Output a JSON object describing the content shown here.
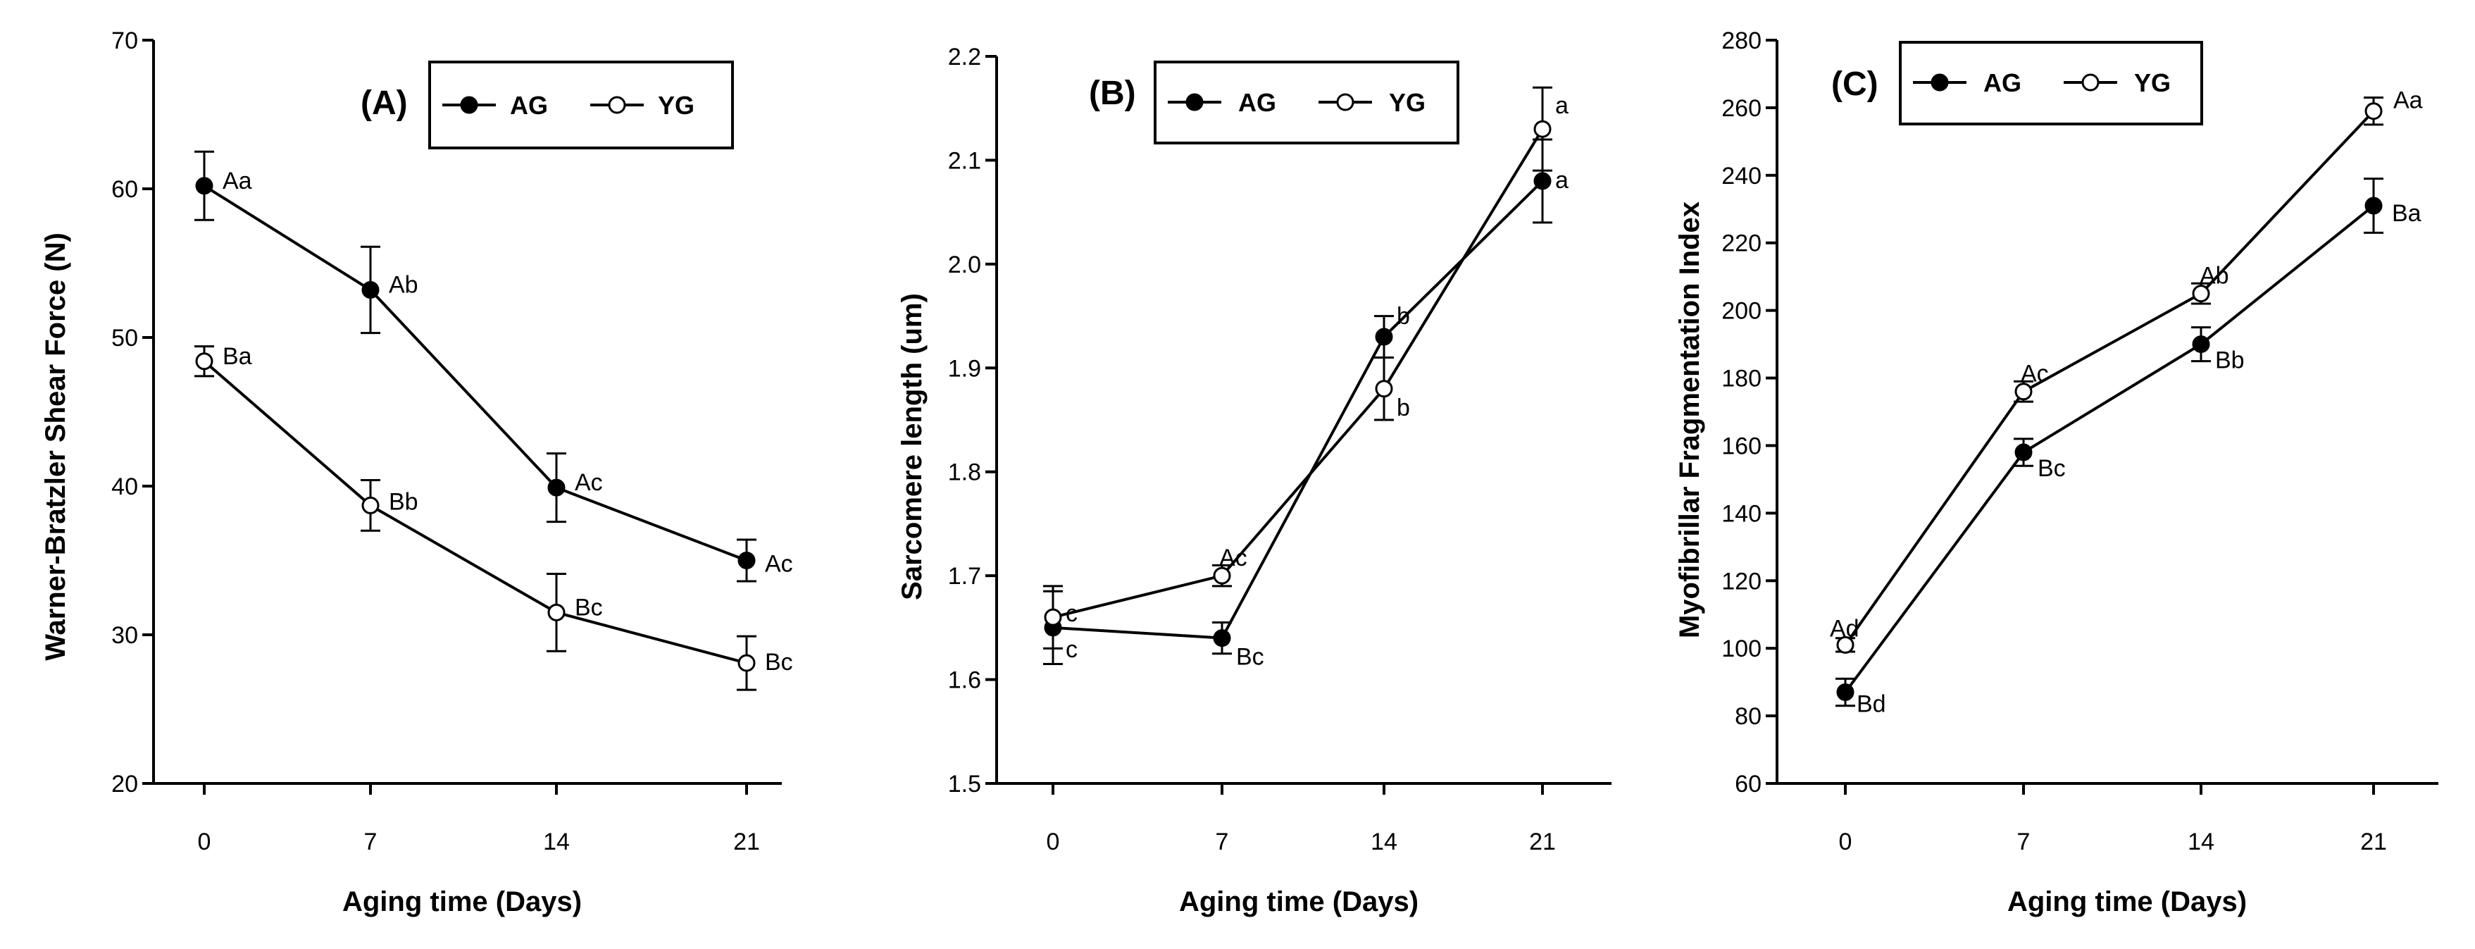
{
  "figure": {
    "background": "#ffffff",
    "ink": "#000000"
  },
  "chart_data": [
    {
      "type": "line",
      "panel": "(A)",
      "xlabel": "Aging time (Days)",
      "ylabel": "Warner-Bratzler Shear Force (N)",
      "x": [
        0,
        7,
        14,
        21
      ],
      "x_tick_labels": [
        "0",
        "7",
        "14",
        "21"
      ],
      "ylim": [
        20,
        70
      ],
      "y_ticks": [
        20,
        30,
        40,
        50,
        60,
        70
      ],
      "legend_position": "top-right",
      "series": [
        {
          "name": "AG",
          "marker": "filled",
          "values": [
            60.2,
            53.2,
            39.9,
            35.0
          ],
          "errors": [
            2.3,
            2.9,
            2.3,
            1.4
          ],
          "labels": [
            "Aa",
            "Ab",
            "Ac",
            "Ac"
          ]
        },
        {
          "name": "YG",
          "marker": "open",
          "values": [
            48.4,
            38.7,
            31.5,
            28.1
          ],
          "errors": [
            1.0,
            1.7,
            2.6,
            1.8
          ],
          "labels": [
            "Ba",
            "Bb",
            "Bc",
            "Bc"
          ]
        }
      ]
    },
    {
      "type": "line",
      "panel": "(B)",
      "xlabel": "Aging time (Days)",
      "ylabel": "Sarcomere length (um)",
      "x": [
        0,
        7,
        14,
        21
      ],
      "x_tick_labels": [
        "0",
        "7",
        "14",
        "21"
      ],
      "ylim": [
        1.5,
        2.2
      ],
      "y_ticks": [
        1.5,
        1.6,
        1.7,
        1.8,
        1.9,
        2.0,
        2.1,
        2.2
      ],
      "legend_position": "top-right",
      "series": [
        {
          "name": "AG",
          "marker": "filled",
          "values": [
            1.65,
            1.64,
            1.93,
            2.08
          ],
          "errors": [
            0.035,
            0.015,
            0.02,
            0.04
          ],
          "labels": [
            "c",
            "Bc",
            "b",
            "a"
          ]
        },
        {
          "name": "YG",
          "marker": "open",
          "values": [
            1.66,
            1.7,
            1.88,
            2.13
          ],
          "errors": [
            0.03,
            0.01,
            0.03,
            0.04
          ],
          "labels": [
            "c",
            "Ac",
            "b",
            "a"
          ]
        }
      ]
    },
    {
      "type": "line",
      "panel": "(C)",
      "xlabel": "Aging time (Days)",
      "ylabel": "Myofibrillar Fragmentation Index",
      "x": [
        0,
        7,
        14,
        21
      ],
      "x_tick_labels": [
        "0",
        "7",
        "14",
        "21"
      ],
      "ylim": [
        60,
        280
      ],
      "y_ticks": [
        60,
        80,
        100,
        120,
        140,
        160,
        180,
        200,
        220,
        240,
        260,
        280
      ],
      "legend_position": "top-left",
      "series": [
        {
          "name": "AG",
          "marker": "filled",
          "values": [
            87,
            158,
            190,
            231
          ],
          "errors": [
            4,
            4,
            5,
            8
          ],
          "labels": [
            "Bd",
            "Bc",
            "Bb",
            "Ba"
          ]
        },
        {
          "name": "YG",
          "marker": "open",
          "values": [
            101,
            176,
            205,
            259
          ],
          "errors": [
            2,
            3,
            3,
            4
          ],
          "labels": [
            "Ad",
            "Ac",
            "Ab",
            "Aa"
          ]
        }
      ]
    }
  ]
}
